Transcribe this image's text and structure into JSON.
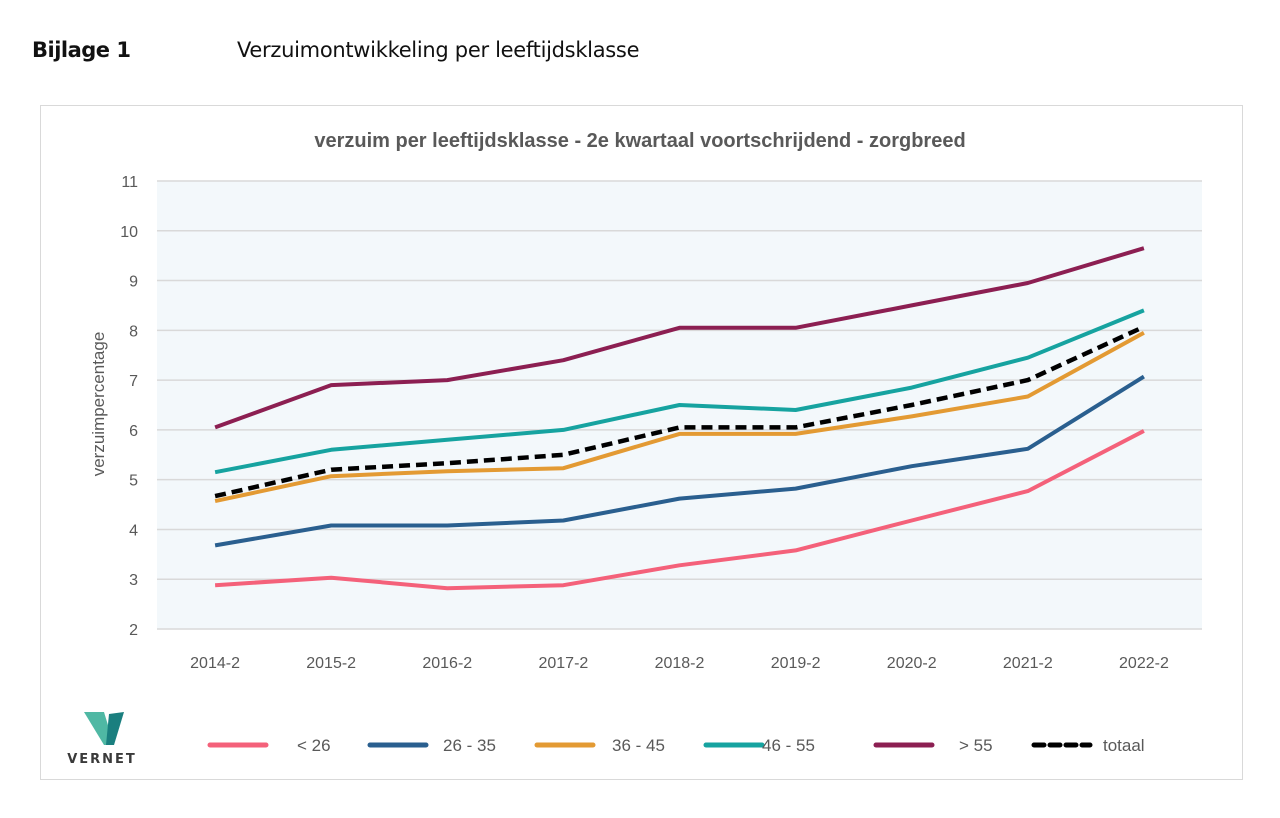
{
  "document": {
    "annex_label": "Bijlage 1",
    "annex_title": "Verzuimontwikkeling per leeftijdsklasse"
  },
  "logo": {
    "name": "VERNET",
    "colors": [
      "#4fb8a4",
      "#1a7f7f"
    ]
  },
  "chart_data": {
    "type": "line",
    "title": "verzuim per leeftijdsklasse - 2e kwartaal voortschrijdend - zorgbreed",
    "xlabel": "",
    "ylabel": "verzuimpercentage",
    "ylim": [
      2,
      11
    ],
    "yticks": [
      "2",
      "3",
      "4",
      "5",
      "6",
      "7",
      "8",
      "9",
      "10",
      "11"
    ],
    "grid": true,
    "plot_background": "#f3f8fb",
    "legend_position": "bottom",
    "categories": [
      "2014-2",
      "2015-2",
      "2016-2",
      "2017-2",
      "2018-2",
      "2019-2",
      "2020-2",
      "2021-2",
      "2022-2"
    ],
    "series": [
      {
        "name": "< 26",
        "color": "#f4617a",
        "dashed": false,
        "values": [
          2.88,
          3.03,
          2.82,
          2.88,
          3.28,
          3.58,
          4.18,
          4.77,
          5.98
        ]
      },
      {
        "name": "26 - 35",
        "color": "#2a5f8f",
        "dashed": false,
        "values": [
          3.68,
          4.08,
          4.08,
          4.18,
          4.62,
          4.82,
          5.27,
          5.62,
          7.07
        ]
      },
      {
        "name": "36 - 45",
        "color": "#e39a33",
        "dashed": false,
        "values": [
          4.57,
          5.07,
          5.17,
          5.23,
          5.92,
          5.92,
          6.27,
          6.67,
          7.95
        ]
      },
      {
        "name": "46 - 55",
        "color": "#16a3a0",
        "dashed": false,
        "values": [
          5.15,
          5.6,
          5.8,
          6.0,
          6.5,
          6.4,
          6.85,
          7.45,
          8.4
        ]
      },
      {
        "name": "> 55",
        "color": "#8c1f52",
        "dashed": false,
        "values": [
          6.05,
          6.9,
          7.0,
          7.4,
          8.05,
          8.05,
          8.5,
          8.95,
          9.65
        ]
      },
      {
        "name": "totaal",
        "color": "#000000",
        "dashed": true,
        "values": [
          4.67,
          5.2,
          5.33,
          5.5,
          6.05,
          6.05,
          6.5,
          7.0,
          8.07
        ]
      }
    ]
  }
}
